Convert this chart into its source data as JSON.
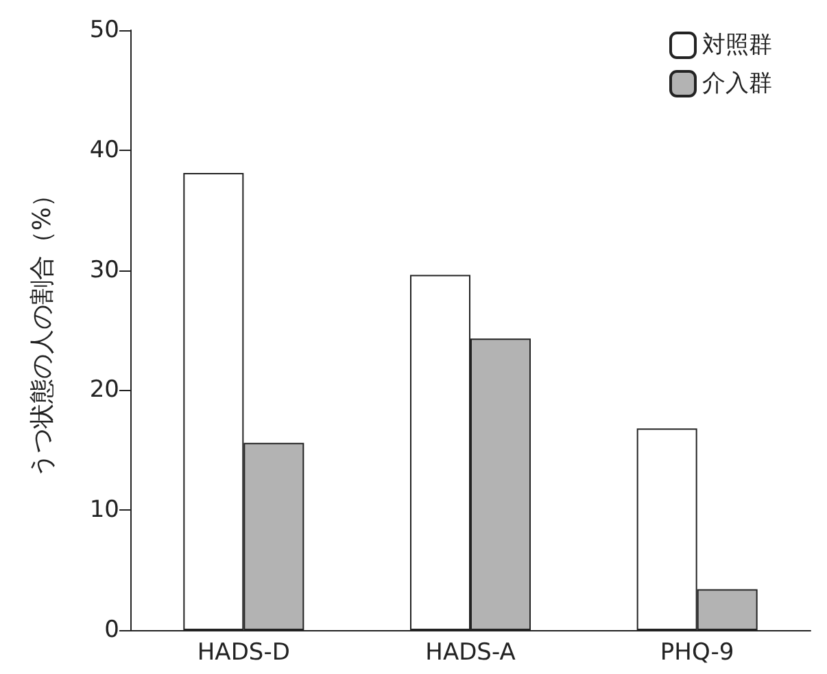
{
  "chart_data": {
    "type": "bar",
    "ylabel": "うつ状態の人の割合（%）",
    "categories": [
      "HADS-D",
      "HADS-A",
      "PHQ-9"
    ],
    "series": [
      {
        "name": "対照群",
        "color": "#ffffff",
        "values": [
          38.1,
          29.6,
          16.8
        ]
      },
      {
        "name": "介入群",
        "color": "#b3b3b3",
        "values": [
          15.6,
          24.3,
          3.4
        ]
      }
    ],
    "ylim": [
      0,
      50
    ],
    "yticks": [
      0,
      10,
      20,
      30,
      40,
      50
    ],
    "grid": false,
    "legend": "top right"
  }
}
